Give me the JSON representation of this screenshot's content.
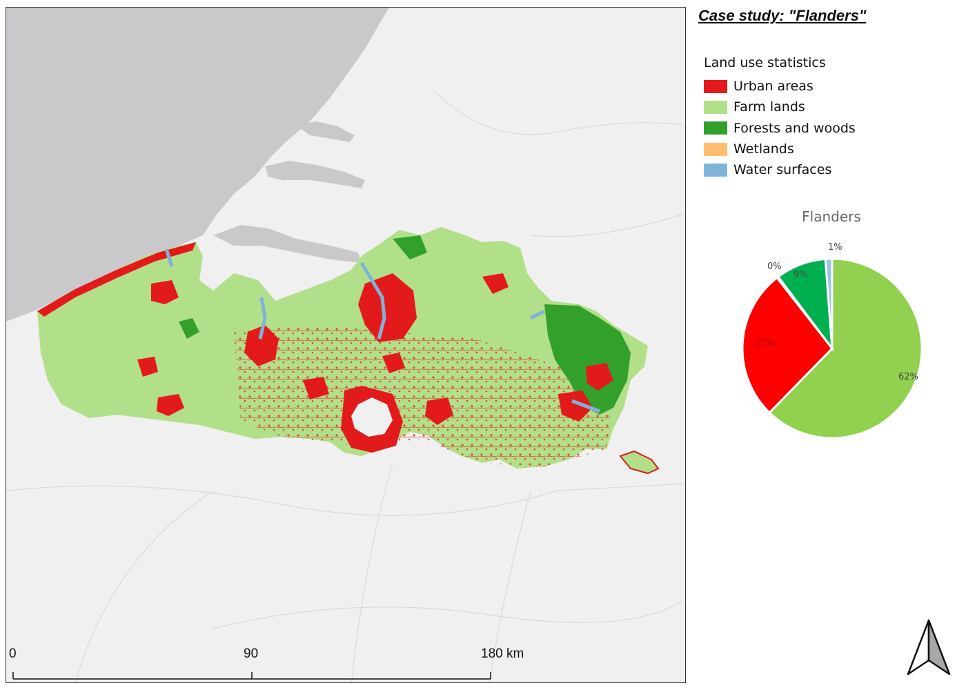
{
  "title": "Case study: \"Flanders\"",
  "legend": {
    "title": "Land use statistics",
    "items": [
      {
        "label": "Urban areas",
        "color": "#e31a1c"
      },
      {
        "label": "Farm lands",
        "color": "#b2df8a"
      },
      {
        "label": "Forests and woods",
        "color": "#33a02c"
      },
      {
        "label": "Wetlands",
        "color": "#fdbf6f"
      },
      {
        "label": "Water surfaces",
        "color": "#7fb4d8"
      }
    ]
  },
  "scale_bar": {
    "labels": [
      "0",
      "90",
      "180 km"
    ]
  },
  "map_colors": {
    "sea": "#c9c9cc",
    "land": "#f0f0f0",
    "urban": "#e31a1c",
    "farm": "#b2df8a",
    "forest": "#33a02c",
    "water": "#7fb4d8"
  },
  "chart_data": {
    "type": "pie",
    "title": "Flanders",
    "slices": [
      {
        "label": "62%",
        "value": 62,
        "color": "#92d050"
      },
      {
        "label": "27%",
        "value": 27,
        "color": "#ff0000"
      },
      {
        "label": "0%",
        "value": 0.3,
        "color": "#f5c27a"
      },
      {
        "label": "9%",
        "value": 9,
        "color": "#00b050"
      },
      {
        "label": "1%",
        "value": 1.2,
        "color": "#9dc3e6"
      }
    ]
  }
}
